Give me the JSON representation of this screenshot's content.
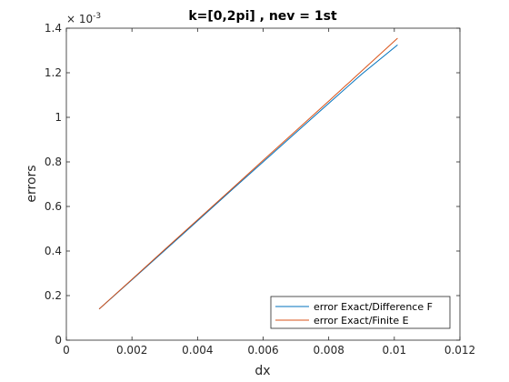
{
  "chart_data": {
    "type": "line",
    "title": "k=[0,2pi] , nev = 1st",
    "xlabel": "dx",
    "ylabel": "errors",
    "xlim": [
      0,
      0.012
    ],
    "ylim": [
      0,
      1.4
    ],
    "x_ticks": [
      "0",
      "0.002",
      "0.004",
      "0.006",
      "0.008",
      "0.01",
      "0.012"
    ],
    "y_ticks": [
      "0",
      "0.2",
      "0.4",
      "0.6",
      "0.8",
      "1",
      "1.2",
      "1.4"
    ],
    "y_exponent_base": "× 10",
    "y_exponent": "-3",
    "grid": false,
    "legend_location": "bottom-right",
    "series": [
      {
        "name": "error Exact/Difference F",
        "color": "#0072BD",
        "x": [
          0.001,
          0.002,
          0.003,
          0.004,
          0.005,
          0.006,
          0.007,
          0.008,
          0.009,
          0.0101
        ],
        "y": [
          0.14,
          0.271,
          0.403,
          0.535,
          0.668,
          0.8,
          0.932,
          1.063,
          1.193,
          1.325
        ]
      },
      {
        "name": "error Exact/Finite E",
        "color": "#D95319",
        "x": [
          0.001,
          0.002,
          0.003,
          0.004,
          0.005,
          0.006,
          0.007,
          0.008,
          0.009,
          0.0101
        ],
        "y": [
          0.14,
          0.273,
          0.407,
          0.54,
          0.673,
          0.807,
          0.94,
          1.073,
          1.207,
          1.355
        ]
      }
    ]
  }
}
